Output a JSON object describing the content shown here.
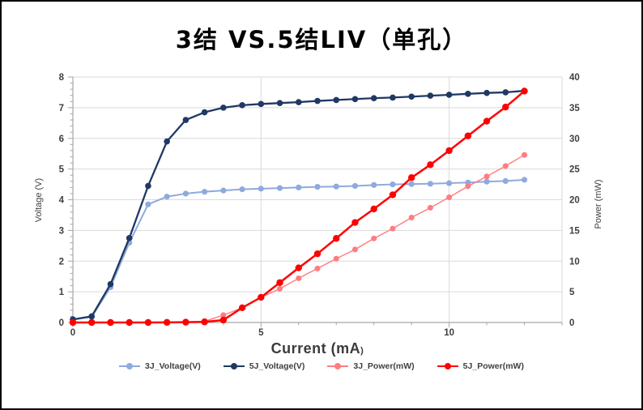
{
  "window": {
    "title": "3结 VS.5结LIV（单孔）"
  },
  "colors": {
    "grid": "#dadada",
    "axis_line": "#a6a6a6",
    "tick_text": "#404040",
    "series_3j_voltage": "#8faadc",
    "series_5j_voltage": "#203864",
    "series_3j_power": "#ff7c80",
    "series_5j_power": "#ff0000"
  },
  "chart_data": {
    "type": "line",
    "title": "3结 VS.5结LIV（单孔）",
    "x_label": "Current (mA",
    "x_label_suffix": ")",
    "y_left_label": "Voltage (V)",
    "y_right_label": "Power (mW)",
    "grid": true,
    "legend_position": "bottom",
    "x_axis": {
      "min": 0,
      "max": 13,
      "major_tick_labels": [
        0,
        5,
        10
      ],
      "minor_step": 1
    },
    "y_left_axis": {
      "min": 0,
      "max": 8,
      "tick_step": 1,
      "minor_step": 0.2
    },
    "y_right_axis": {
      "min": 0,
      "max": 40,
      "tick_step": 5
    },
    "x": [
      0,
      0.5,
      1,
      1.5,
      2,
      2.5,
      3,
      3.5,
      4,
      4.5,
      5,
      5.5,
      6,
      6.5,
      7,
      7.5,
      8,
      8.5,
      9,
      9.5,
      10,
      10.5,
      11,
      11.5,
      12
    ],
    "series": [
      {
        "name": "3J_Voltage(V)",
        "axis": "left",
        "color": "#8faadc",
        "values": [
          0.1,
          0.18,
          1.15,
          2.6,
          3.85,
          4.1,
          4.2,
          4.26,
          4.3,
          4.34,
          4.36,
          4.38,
          4.4,
          4.42,
          4.43,
          4.45,
          4.48,
          4.5,
          4.51,
          4.52,
          4.54,
          4.56,
          4.59,
          4.61,
          4.65
        ]
      },
      {
        "name": "5J_Voltage(V)",
        "axis": "left",
        "color": "#203864",
        "values": [
          0.1,
          0.2,
          1.25,
          2.75,
          4.45,
          5.9,
          6.6,
          6.85,
          7.0,
          7.08,
          7.12,
          7.15,
          7.18,
          7.22,
          7.25,
          7.28,
          7.31,
          7.33,
          7.36,
          7.39,
          7.42,
          7.45,
          7.48,
          7.5,
          7.55
        ]
      },
      {
        "name": "3J_Power(mW)",
        "axis": "right",
        "color": "#ff7c80",
        "values": [
          0,
          0,
          0,
          0,
          0,
          0.02,
          0.05,
          0.2,
          1.2,
          2.4,
          4.1,
          5.5,
          7.2,
          8.8,
          10.4,
          11.9,
          13.7,
          15.3,
          17.1,
          18.7,
          20.4,
          22.2,
          23.8,
          25.5,
          27.3
        ]
      },
      {
        "name": "5J_Power(mW)",
        "axis": "right",
        "color": "#ff0000",
        "values": [
          0,
          0,
          0,
          0,
          0,
          0.02,
          0.05,
          0.1,
          0.4,
          2.4,
          4.1,
          6.5,
          8.9,
          11.2,
          13.7,
          16.3,
          18.5,
          20.8,
          23.6,
          25.7,
          28.0,
          30.4,
          32.8,
          35.1,
          37.7
        ]
      }
    ]
  }
}
